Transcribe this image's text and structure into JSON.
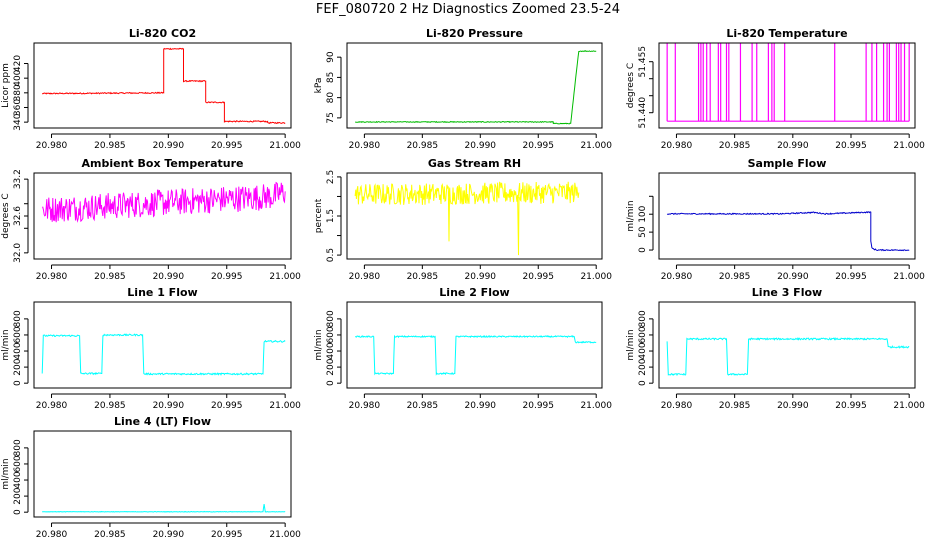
{
  "main_title": "FEF_080720  2 Hz Diagnostics Zoomed 23.5-24",
  "colors": {
    "red": "#ff0000",
    "green": "#00bb00",
    "magenta": "#ff00ff",
    "yellow": "#ffff00",
    "blue": "#0000cc",
    "cyan": "#00ffff"
  },
  "chart_data": [
    {
      "type": "line",
      "title": "Li-820 CO2",
      "ylabel": "Licor ppm",
      "color": "#ff0000",
      "xlim": [
        20.9785,
        21.0005
      ],
      "ylim": [
        332,
        448
      ],
      "xticks": [
        20.98,
        20.985,
        20.99,
        20.995,
        21.0
      ],
      "xticklabels": [
        "20.980",
        "20.985",
        "20.990",
        "20.995",
        "21.000"
      ],
      "yticks": [
        340,
        360,
        380,
        400,
        420
      ],
      "yticklabels": [
        "340",
        "360",
        "380",
        "400",
        "420"
      ],
      "noise": 0.8,
      "series": [
        {
          "name": "CO2",
          "x": [
            20.9792,
            20.9896,
            20.9896,
            20.9913,
            20.9913,
            20.9932,
            20.9932,
            20.9948,
            20.9948,
            20.9985,
            20.9985,
            21.0
          ],
          "y": [
            379,
            380,
            440,
            440,
            396,
            396,
            367,
            367,
            341,
            341,
            339,
            339
          ]
        }
      ]
    },
    {
      "type": "line",
      "title": "Li-820 Pressure",
      "ylabel": "kPa",
      "color": "#00bb00",
      "xlim": [
        20.9785,
        21.0005
      ],
      "ylim": [
        72.5,
        93.5
      ],
      "xticks": [
        20.98,
        20.985,
        20.99,
        20.995,
        21.0
      ],
      "xticklabels": [
        "20.980",
        "20.985",
        "20.990",
        "20.995",
        "21.000"
      ],
      "yticks": [
        75,
        80,
        85,
        90
      ],
      "yticklabels": [
        "75",
        "80",
        "85",
        "90"
      ],
      "noise": 0.1,
      "series": [
        {
          "name": "Pressure",
          "x": [
            20.9792,
            20.9963,
            20.9963,
            20.9978,
            20.9982,
            20.9985,
            21.0
          ],
          "y": [
            74.0,
            74.0,
            73.6,
            73.6,
            84,
            91.5,
            91.5
          ]
        }
      ]
    },
    {
      "type": "line",
      "title": "Li-820 Temperature",
      "ylabel": "degrees C",
      "color": "#ff00ff",
      "xlim": [
        20.9785,
        21.0005
      ],
      "ylim": [
        51.4355,
        51.4605
      ],
      "xticks": [
        20.98,
        20.985,
        20.99,
        20.995,
        21.0
      ],
      "xticklabels": [
        "20.980",
        "20.985",
        "20.990",
        "20.995",
        "21.000"
      ],
      "yticks": [
        51.44,
        51.445,
        51.45,
        51.455
      ],
      "yticklabels": [
        "51.440",
        "",
        "",
        "51.455"
      ],
      "base": 51.4375,
      "high": 51.4605,
      "spikes": [
        20.9792,
        20.9799,
        20.9819,
        20.9821,
        20.9823,
        20.9826,
        20.9829,
        20.9836,
        20.9838,
        20.9843,
        20.9845,
        20.9855,
        20.9865,
        20.9869,
        20.9879,
        20.9882,
        20.9884,
        20.9893,
        20.9936,
        20.9963,
        20.9968,
        20.9972,
        20.9978,
        20.9981,
        20.9983,
        20.9989,
        20.9991,
        20.9993,
        20.9996,
        21.0
      ],
      "series": [
        {
          "name": "Temperature",
          "x": [],
          "y": []
        }
      ]
    },
    {
      "type": "line",
      "title": "Ambient Box Temperature",
      "ylabel": "degrees C",
      "color": "#ff00ff",
      "xlim": [
        20.9785,
        21.0005
      ],
      "ylim": [
        31.9,
        33.3
      ],
      "xticks": [
        20.98,
        20.985,
        20.99,
        20.995,
        21.0
      ],
      "xticklabels": [
        "20.980",
        "20.985",
        "20.990",
        "20.995",
        "21.000"
      ],
      "yticks": [
        32.0,
        32.4,
        32.6,
        32.8,
        33.2
      ],
      "yticklabels": [
        "32.0",
        "",
        "32.6",
        "",
        "33.2"
      ],
      "noise": 0.22,
      "series": [
        {
          "name": "Ambient",
          "x": [
            20.9792,
            20.999,
            21.0
          ],
          "y": [
            32.7,
            32.92,
            33.0
          ]
        }
      ]
    },
    {
      "type": "line",
      "title": "Gas Stream RH",
      "ylabel": "percent",
      "color": "#ffff00",
      "xlim": [
        20.9785,
        21.0005
      ],
      "ylim": [
        0.4,
        2.6
      ],
      "xticks": [
        20.98,
        20.985,
        20.99,
        20.995,
        21.0
      ],
      "xticklabels": [
        "20.980",
        "20.985",
        "20.990",
        "20.995",
        "21.000"
      ],
      "yticks": [
        0.5,
        1.0,
        1.5,
        2.0,
        2.5
      ],
      "yticklabels": [
        "0.5",
        "",
        "1.5",
        "",
        "2.5"
      ],
      "noise": 0.28,
      "dips": [
        [
          20.9873,
          0.85
        ],
        [
          20.9933,
          0.5
        ]
      ],
      "series": [
        {
          "name": "RH",
          "x": [
            20.9792,
            20.9985
          ],
          "y": [
            2.05,
            2.1
          ]
        }
      ]
    },
    {
      "type": "line",
      "title": "Sample Flow",
      "ylabel": "ml/min",
      "color": "#0000cc",
      "xlim": [
        20.9785,
        21.0005
      ],
      "ylim": [
        -25,
        215
      ],
      "xticks": [
        20.98,
        20.985,
        20.99,
        20.995,
        21.0
      ],
      "xticklabels": [
        "20.980",
        "20.985",
        "20.990",
        "20.995",
        "21.000"
      ],
      "yticks": [
        0,
        50,
        100,
        150
      ],
      "yticklabels": [
        "0",
        "50",
        "100",
        ""
      ],
      "noise": 1.5,
      "series": [
        {
          "name": "Sample",
          "x": [
            20.9792,
            20.989,
            20.9918,
            20.9928,
            20.9967,
            20.9967,
            20.9968,
            20.9972,
            21.0
          ],
          "y": [
            101,
            101,
            105,
            101,
            106,
            25,
            5,
            0,
            0
          ]
        }
      ]
    },
    {
      "type": "line",
      "title": "Line 1 Flow",
      "ylabel": "ml/min",
      "color": "#00ffff",
      "xlim": [
        20.9785,
        21.0005
      ],
      "ylim": [
        -60,
        1010
      ],
      "xticks": [
        20.98,
        20.985,
        20.99,
        20.995,
        21.0
      ],
      "xticklabels": [
        "20.980",
        "20.985",
        "20.990",
        "20.995",
        "21.000"
      ],
      "yticks": [
        0,
        200,
        400,
        600,
        800
      ],
      "yticklabels": [
        "0",
        "200",
        "400",
        "600",
        "800"
      ],
      "noise": 10,
      "series": [
        {
          "name": "Line 1",
          "x": [
            20.9792,
            20.9793,
            20.9824,
            20.9825,
            20.9843,
            20.9844,
            20.9878,
            20.9879,
            20.9981,
            20.9982,
            21.0
          ],
          "y": [
            120,
            590,
            590,
            120,
            120,
            600,
            600,
            115,
            115,
            520,
            520
          ]
        }
      ]
    },
    {
      "type": "line",
      "title": "Line 2 Flow",
      "ylabel": "ml/min",
      "color": "#00ffff",
      "xlim": [
        20.9785,
        21.0005
      ],
      "ylim": [
        -60,
        1010
      ],
      "xticks": [
        20.98,
        20.985,
        20.99,
        20.995,
        21.0
      ],
      "xticklabels": [
        "20.980",
        "20.985",
        "20.990",
        "20.995",
        "21.000"
      ],
      "yticks": [
        0,
        200,
        400,
        600,
        800
      ],
      "yticklabels": [
        "0",
        "200",
        "400",
        "600",
        "800"
      ],
      "noise": 8,
      "series": [
        {
          "name": "Line 2",
          "x": [
            20.9792,
            20.9808,
            20.9809,
            20.9825,
            20.9826,
            20.9861,
            20.9862,
            20.9878,
            20.9879,
            20.9981,
            20.9982,
            21.0
          ],
          "y": [
            580,
            580,
            120,
            120,
            580,
            580,
            120,
            120,
            580,
            580,
            510,
            510
          ]
        }
      ]
    },
    {
      "type": "line",
      "title": "Line 3 Flow",
      "ylabel": "ml/min",
      "color": "#00ffff",
      "xlim": [
        20.9785,
        21.0005
      ],
      "ylim": [
        -60,
        1010
      ],
      "xticks": [
        20.98,
        20.985,
        20.99,
        20.995,
        21.0
      ],
      "xticklabels": [
        "20.980",
        "20.985",
        "20.990",
        "20.995",
        "21.000"
      ],
      "yticks": [
        0,
        200,
        400,
        600,
        800
      ],
      "yticklabels": [
        "0",
        "200",
        "400",
        "600",
        "800"
      ],
      "noise": 10,
      "series": [
        {
          "name": "Line 3",
          "x": [
            20.9792,
            20.9793,
            20.9808,
            20.9809,
            20.9843,
            20.9844,
            20.9861,
            20.9862,
            20.9981,
            20.9982,
            21.0
          ],
          "y": [
            520,
            110,
            110,
            550,
            550,
            110,
            110,
            550,
            550,
            450,
            450
          ]
        }
      ]
    },
    {
      "type": "line",
      "title": "Line 4 (LT) Flow",
      "ylabel": "ml/min",
      "color": "#00ffff",
      "xlim": [
        20.9785,
        21.0005
      ],
      "ylim": [
        -60,
        1010
      ],
      "xticks": [
        20.98,
        20.985,
        20.99,
        20.995,
        21.0
      ],
      "xticklabels": [
        "20.980",
        "20.985",
        "20.990",
        "20.995",
        "21.000"
      ],
      "yticks": [
        0,
        200,
        400,
        600,
        800
      ],
      "yticklabels": [
        "0",
        "200",
        "400",
        "600",
        "800"
      ],
      "noise": 3,
      "series": [
        {
          "name": "Line 4",
          "x": [
            20.9792,
            20.9981,
            20.9982,
            20.9983,
            21.0
          ],
          "y": [
            5,
            5,
            100,
            5,
            5
          ]
        }
      ]
    }
  ]
}
